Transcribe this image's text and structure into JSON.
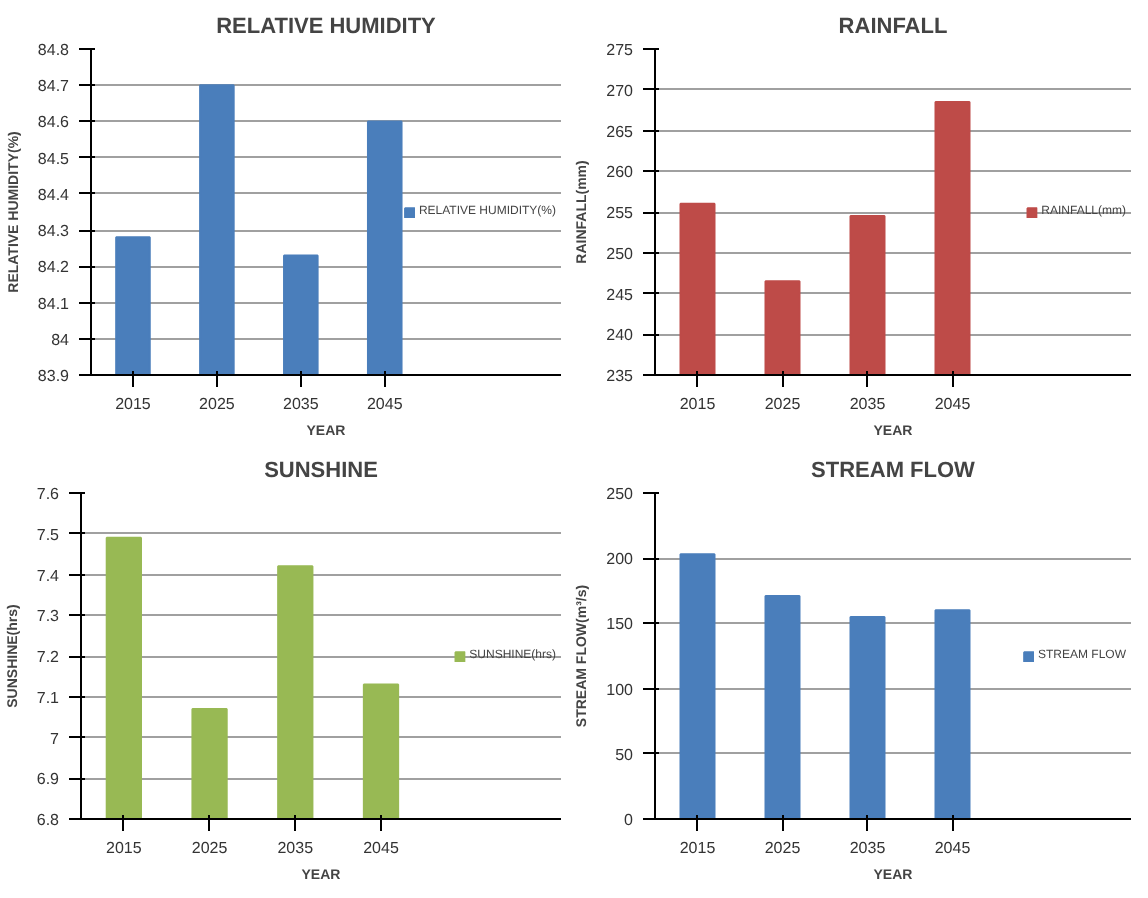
{
  "chart_data": [
    {
      "type": "bar",
      "title": "RELATIVE HUMIDITY",
      "xlabel": "YEAR",
      "ylabel": "RELATIVE HUMIDITY(%)",
      "categories": [
        "2015",
        "2025",
        "2035",
        "2045"
      ],
      "series": [
        {
          "name": "RELATIVE HUMIDITY(%)",
          "color": "#4a7ebb",
          "values": [
            84.28,
            84.7,
            84.23,
            84.6
          ]
        }
      ],
      "ylim": [
        83.9,
        84.8
      ],
      "yticks": [
        83.9,
        84,
        84.1,
        84.2,
        84.3,
        84.4,
        84.5,
        84.6,
        84.7,
        84.8
      ],
      "grid": "y",
      "legend": "right"
    },
    {
      "type": "bar",
      "title": "RAINFALL",
      "xlabel": "YEAR",
      "ylabel": "RAINFALL(mm)",
      "categories": [
        "2015",
        "2025",
        "2035",
        "2045"
      ],
      "series": [
        {
          "name": "RAINFALL(mm)",
          "color": "#be4b48",
          "values": [
            256,
            246.5,
            254.5,
            268.5
          ]
        }
      ],
      "ylim": [
        235,
        275
      ],
      "yticks": [
        235,
        240,
        245,
        250,
        255,
        260,
        265,
        270,
        275
      ],
      "grid": "y",
      "legend": "right"
    },
    {
      "type": "bar",
      "title": "SUNSHINE",
      "xlabel": "YEAR",
      "ylabel": "SUNSHINE(hrs)",
      "categories": [
        "2015",
        "2025",
        "2035",
        "2045"
      ],
      "series": [
        {
          "name": "SUNSHINE(hrs)",
          "color": "#98b954",
          "values": [
            7.49,
            7.07,
            7.42,
            7.13
          ]
        }
      ],
      "ylim": [
        6.8,
        7.6
      ],
      "yticks": [
        6.8,
        6.9,
        7,
        7.1,
        7.2,
        7.3,
        7.4,
        7.5,
        7.6
      ],
      "grid": "y",
      "legend": "right"
    },
    {
      "type": "bar",
      "title": "STREAM FLOW",
      "xlabel": "YEAR",
      "ylabel": "STREAM FLOW(m³/s)",
      "categories": [
        "2015",
        "2025",
        "2035",
        "2045"
      ],
      "series": [
        {
          "name": "STREAM FLOW",
          "color": "#4a7ebb",
          "values": [
            203,
            171,
            155,
            160
          ]
        }
      ],
      "ylim": [
        0,
        250
      ],
      "yticks": [
        0,
        50,
        100,
        150,
        200,
        250
      ],
      "grid": "y",
      "legend": "right"
    }
  ]
}
